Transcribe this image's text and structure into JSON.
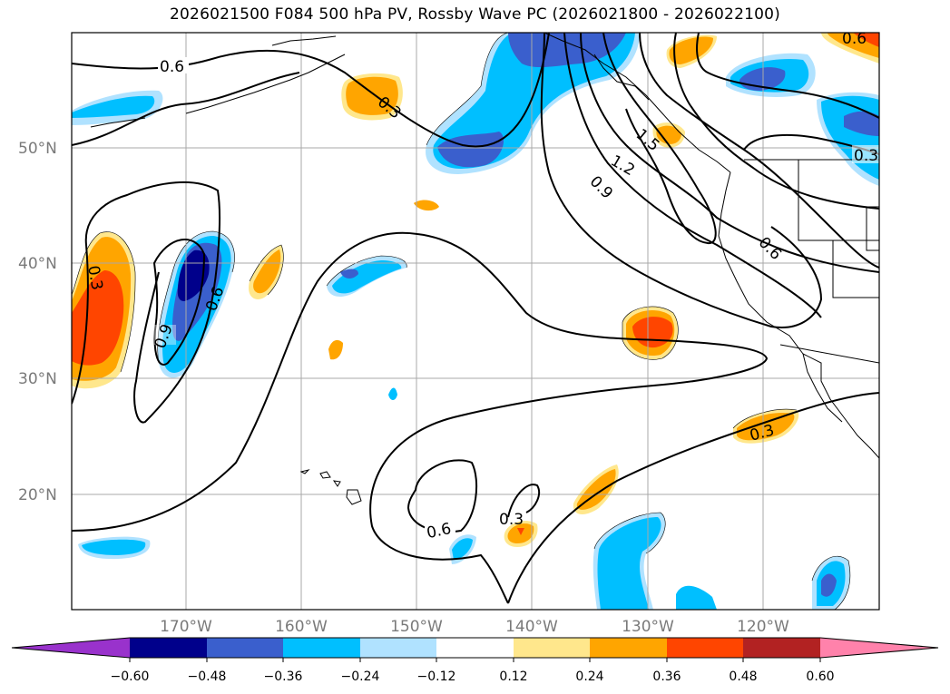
{
  "title": "2026021500 F084 500 hPa PV, Rossby Wave PC (2026021800 - 2026022100)",
  "lat_labels": [
    "50°N",
    "40°N",
    "30°N",
    "20°N"
  ],
  "lon_labels": [
    "170°W",
    "160°W",
    "150°W",
    "140°W",
    "130°W",
    "120°W"
  ],
  "contour_labels": [
    "0.6",
    "0.3",
    "0.3",
    "0.9",
    "0.6",
    "1.2",
    "1.5",
    "0.9",
    "0.6",
    "0.3",
    "0.3",
    "0.6",
    "0.3",
    "0.6"
  ],
  "colorbar": {
    "tick_labels": [
      "−0.60",
      "−0.48",
      "−0.36",
      "−0.24",
      "−0.12",
      "0.12",
      "0.24",
      "0.36",
      "0.48",
      "0.60"
    ],
    "colors": [
      "#9932cc",
      "#00008b",
      "#3a5fcd",
      "#00bfff",
      "#b0e2ff",
      "#ffffff",
      "#ffe78c",
      "#ffa500",
      "#ff4500",
      "#b22222",
      "#ff82ab"
    ]
  },
  "fill_colors": {
    "neg1": "#b0e2ff",
    "neg2": "#00bfff",
    "neg3": "#3a5fcd",
    "neg4": "#00008b",
    "pos1": "#ffe78c",
    "pos2": "#ffa500",
    "pos3": "#ff4500"
  }
}
